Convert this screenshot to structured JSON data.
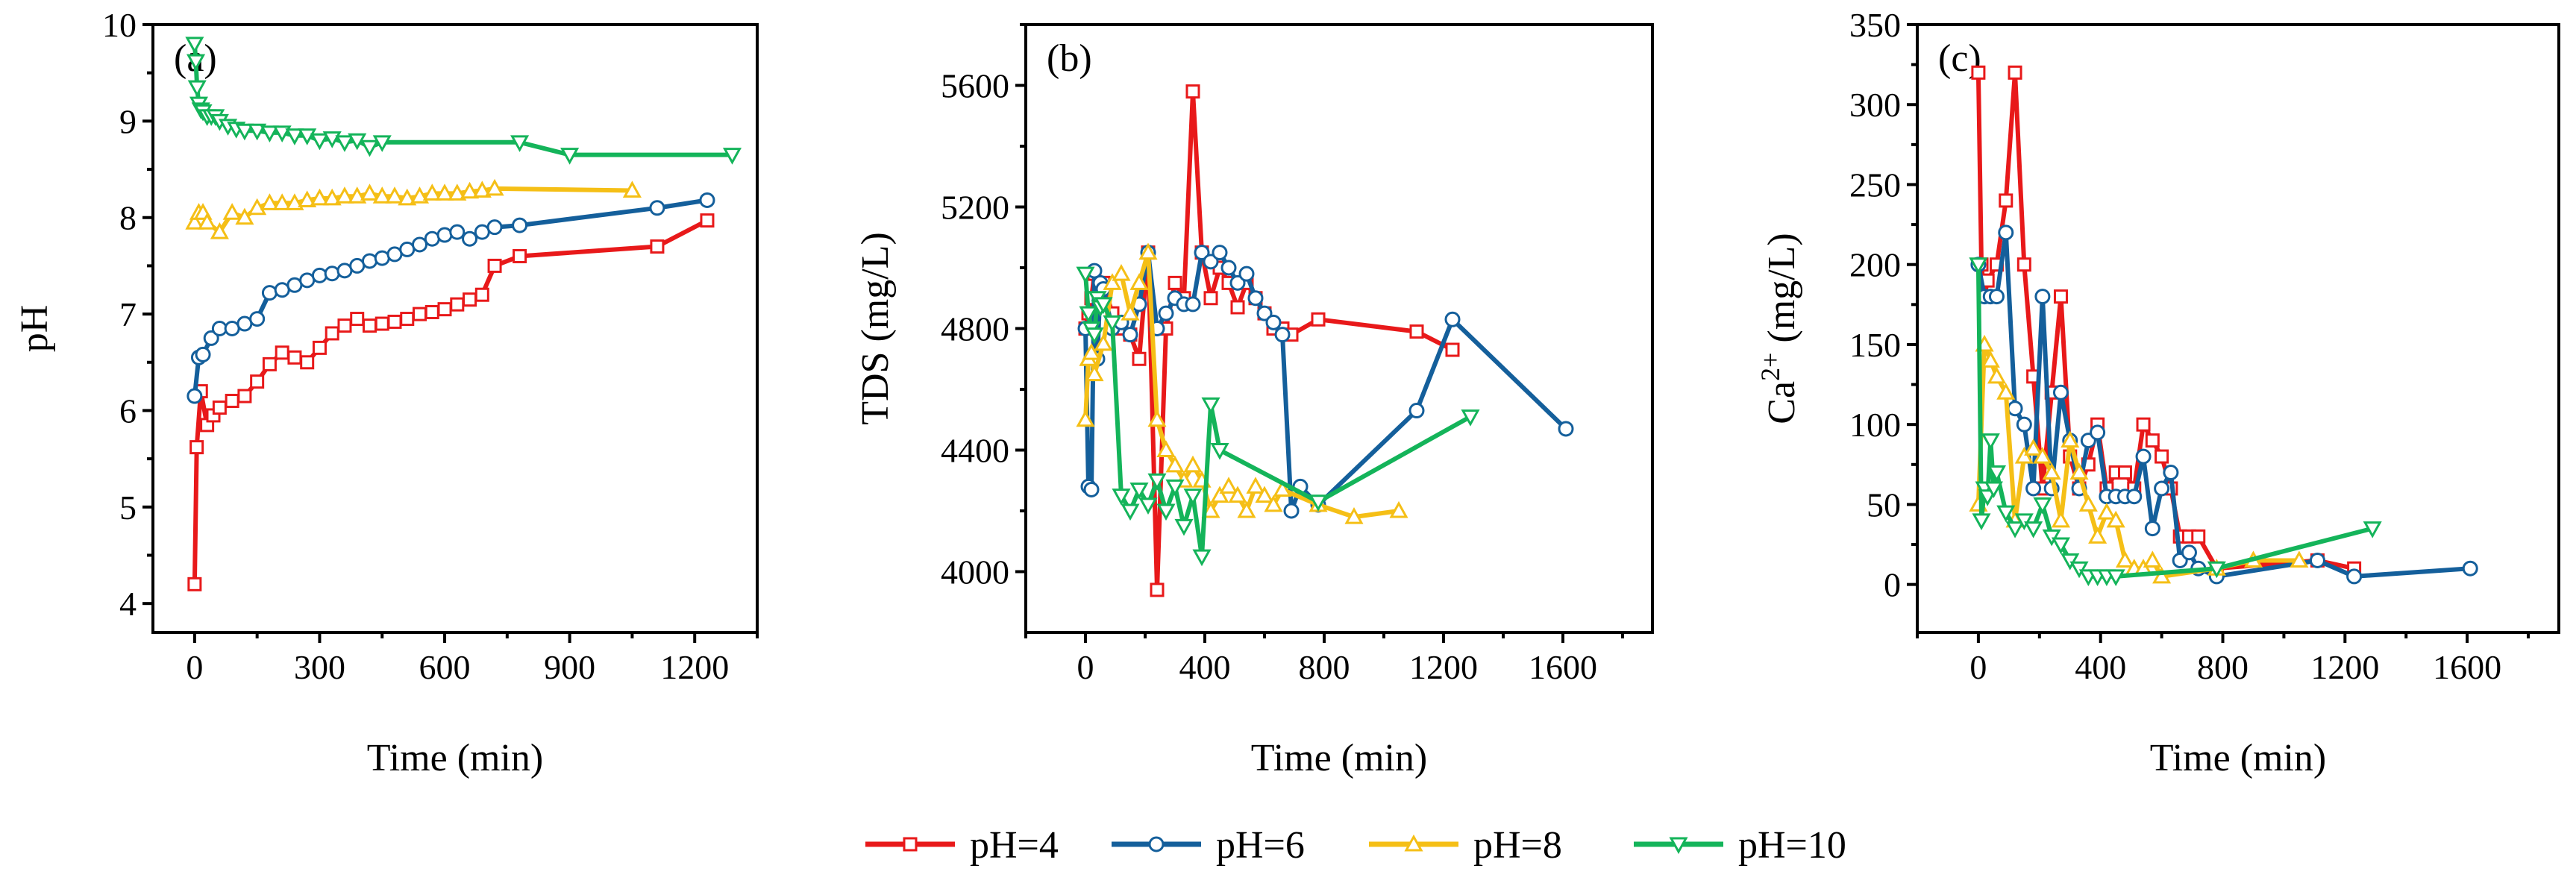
{
  "legend": [
    {
      "label": "pH=4",
      "color": "#e8191a",
      "marker": "square"
    },
    {
      "label": "pH=6",
      "color": "#145f9b",
      "marker": "circle"
    },
    {
      "label": "pH=8",
      "color": "#f5bf16",
      "marker": "triangle-up"
    },
    {
      "label": "pH=10",
      "color": "#14b45a",
      "marker": "triangle-down"
    }
  ],
  "chart_data": [
    {
      "type": "line",
      "panel": "(a)",
      "xlabel": "Time (min)",
      "ylabel": "pH",
      "xlim": [
        -100,
        1350
      ],
      "ylim": [
        3.7,
        10
      ],
      "xticks": [
        0,
        300,
        600,
        900,
        1200
      ],
      "yticks": [
        4,
        5,
        6,
        7,
        8,
        9,
        10
      ],
      "series": [
        {
          "name": "pH=4",
          "x": [
            0,
            5,
            15,
            30,
            45,
            60,
            90,
            120,
            150,
            180,
            210,
            240,
            270,
            300,
            330,
            360,
            390,
            420,
            450,
            480,
            510,
            540,
            570,
            600,
            630,
            660,
            690,
            720,
            780,
            1110,
            1230
          ],
          "y": [
            4.2,
            5.62,
            6.2,
            5.85,
            5.95,
            6.03,
            6.1,
            6.15,
            6.3,
            6.48,
            6.6,
            6.55,
            6.5,
            6.65,
            6.8,
            6.88,
            6.95,
            6.88,
            6.9,
            6.92,
            6.95,
            7.0,
            7.02,
            7.05,
            7.1,
            7.15,
            7.2,
            7.5,
            7.6,
            7.7,
            7.97
          ]
        },
        {
          "name": "pH=6",
          "x": [
            0,
            10,
            20,
            40,
            60,
            90,
            120,
            150,
            180,
            210,
            240,
            270,
            300,
            330,
            360,
            390,
            420,
            450,
            480,
            510,
            540,
            570,
            600,
            630,
            660,
            690,
            720,
            780,
            1110,
            1230
          ],
          "y": [
            6.15,
            6.55,
            6.58,
            6.75,
            6.85,
            6.85,
            6.9,
            6.95,
            7.22,
            7.25,
            7.3,
            7.35,
            7.4,
            7.42,
            7.45,
            7.5,
            7.55,
            7.58,
            7.62,
            7.67,
            7.72,
            7.78,
            7.82,
            7.85,
            7.78,
            7.85,
            7.9,
            7.92,
            8.1,
            8.18
          ]
        },
        {
          "name": "pH=8",
          "x": [
            0,
            10,
            20,
            30,
            60,
            90,
            120,
            150,
            180,
            210,
            240,
            270,
            300,
            330,
            360,
            390,
            420,
            450,
            480,
            510,
            540,
            570,
            600,
            630,
            660,
            690,
            720,
            1050
          ],
          "y": [
            7.95,
            8.05,
            8.05,
            7.95,
            7.85,
            8.05,
            8.0,
            8.1,
            8.15,
            8.15,
            8.15,
            8.18,
            8.2,
            8.2,
            8.22,
            8.22,
            8.25,
            8.22,
            8.22,
            8.2,
            8.22,
            8.25,
            8.25,
            8.25,
            8.27,
            8.28,
            8.3,
            8.28
          ]
        },
        {
          "name": "pH=10",
          "x": [
            0,
            3,
            6,
            10,
            15,
            20,
            30,
            40,
            50,
            60,
            80,
            100,
            120,
            150,
            180,
            210,
            240,
            270,
            300,
            330,
            360,
            390,
            420,
            450,
            780,
            900,
            1290
          ],
          "y": [
            9.8,
            9.62,
            9.35,
            9.18,
            9.12,
            9.1,
            9.05,
            9.05,
            9.05,
            9.0,
            8.95,
            8.92,
            8.9,
            8.9,
            8.88,
            8.88,
            8.85,
            8.85,
            8.8,
            8.82,
            8.78,
            8.8,
            8.73,
            8.78,
            8.78,
            8.65,
            8.65
          ]
        }
      ]
    },
    {
      "type": "line",
      "panel": "(b)",
      "xlabel": "Time (min)",
      "ylabel": "TDS (mg/L)",
      "xlim": [
        -200,
        1900
      ],
      "ylim": [
        3800,
        5800
      ],
      "xticks": [
        0,
        400,
        800,
        1200,
        1600
      ],
      "yticks": [
        4000,
        4400,
        4800,
        5200,
        5600
      ],
      "series": [
        {
          "name": "pH=4",
          "x": [
            0,
            10,
            20,
            30,
            60,
            90,
            120,
            150,
            180,
            210,
            240,
            270,
            300,
            330,
            360,
            390,
            420,
            450,
            480,
            510,
            540,
            570,
            600,
            630,
            660,
            690,
            780,
            1110,
            1230
          ],
          "y": [
            4800,
            4850,
            4900,
            4980,
            4950,
            4850,
            4800,
            4780,
            4700,
            5050,
            3940,
            4800,
            4950,
            4900,
            5580,
            5050,
            4900,
            5000,
            4950,
            4870,
            4950,
            4900,
            4850,
            4800,
            4800,
            4780,
            4830,
            4790,
            4730
          ]
        },
        {
          "name": "pH=6",
          "x": [
            0,
            10,
            20,
            30,
            40,
            50,
            60,
            90,
            120,
            150,
            180,
            210,
            240,
            270,
            300,
            330,
            360,
            390,
            420,
            450,
            480,
            510,
            540,
            570,
            600,
            630,
            660,
            690,
            720,
            780,
            1110,
            1230,
            1610
          ],
          "y": [
            4800,
            4280,
            4270,
            4990,
            4700,
            4950,
            4930,
            4800,
            4820,
            4780,
            4880,
            5050,
            4800,
            4850,
            4900,
            4880,
            4880,
            5050,
            5020,
            5050,
            5000,
            4950,
            4980,
            4900,
            4850,
            4820,
            4780,
            4200,
            4280,
            4220,
            4530,
            4830,
            4470
          ]
        },
        {
          "name": "pH=8",
          "x": [
            0,
            10,
            20,
            30,
            60,
            90,
            120,
            150,
            180,
            210,
            240,
            270,
            300,
            330,
            360,
            390,
            420,
            450,
            480,
            510,
            540,
            570,
            600,
            630,
            660,
            780,
            900,
            1050
          ],
          "y": [
            4500,
            4700,
            4720,
            4650,
            4750,
            4950,
            4980,
            4850,
            4950,
            5050,
            4500,
            4400,
            4350,
            4300,
            4350,
            4300,
            4200,
            4250,
            4280,
            4250,
            4200,
            4280,
            4250,
            4220,
            4270,
            4220,
            4180,
            4200
          ]
        },
        {
          "name": "pH=10",
          "x": [
            0,
            10,
            20,
            30,
            40,
            50,
            60,
            90,
            120,
            150,
            180,
            210,
            240,
            270,
            300,
            330,
            360,
            390,
            420,
            450,
            780,
            1290
          ],
          "y": [
            4980,
            4850,
            4800,
            4780,
            4900,
            4870,
            4880,
            4820,
            4250,
            4200,
            4270,
            4220,
            4300,
            4200,
            4280,
            4150,
            4250,
            4050,
            4550,
            4400,
            4230,
            4510
          ]
        }
      ]
    },
    {
      "type": "line",
      "panel": "(c)",
      "xlabel": "Time (min)",
      "ylabel": "Ca2+ (mg/L)",
      "xlim": [
        -200,
        1900
      ],
      "ylim": [
        -30,
        350
      ],
      "xticks": [
        0,
        400,
        800,
        1200,
        1600
      ],
      "yticks": [
        0,
        50,
        100,
        150,
        200,
        250,
        300,
        350
      ],
      "series": [
        {
          "name": "pH=4",
          "x": [
            0,
            10,
            20,
            30,
            60,
            90,
            120,
            150,
            180,
            210,
            240,
            270,
            300,
            330,
            360,
            390,
            420,
            450,
            480,
            510,
            540,
            570,
            600,
            630,
            660,
            690,
            720,
            780,
            1110,
            1230
          ],
          "y": [
            320,
            200,
            180,
            190,
            200,
            240,
            320,
            200,
            130,
            60,
            120,
            180,
            80,
            60,
            75,
            100,
            60,
            70,
            70,
            60,
            100,
            90,
            80,
            60,
            30,
            30,
            30,
            10,
            15,
            10
          ]
        },
        {
          "name": "pH=6",
          "x": [
            0,
            20,
            40,
            60,
            90,
            120,
            150,
            180,
            210,
            240,
            270,
            300,
            330,
            360,
            390,
            420,
            450,
            480,
            510,
            540,
            570,
            600,
            630,
            660,
            690,
            720,
            780,
            1110,
            1230,
            1610
          ],
          "y": [
            200,
            180,
            180,
            180,
            220,
            110,
            100,
            60,
            180,
            60,
            120,
            90,
            60,
            90,
            95,
            55,
            55,
            55,
            55,
            80,
            35,
            60,
            70,
            15,
            20,
            10,
            5,
            15,
            5,
            10
          ]
        },
        {
          "name": "pH=8",
          "x": [
            0,
            20,
            40,
            60,
            90,
            120,
            150,
            180,
            210,
            240,
            270,
            300,
            330,
            360,
            390,
            420,
            450,
            480,
            510,
            540,
            570,
            600,
            780,
            900,
            1050
          ],
          "y": [
            50,
            150,
            140,
            130,
            120,
            40,
            80,
            85,
            80,
            70,
            40,
            90,
            70,
            50,
            30,
            45,
            40,
            15,
            10,
            10,
            15,
            5,
            10,
            15,
            15
          ]
        },
        {
          "name": "pH=10",
          "x": [
            0,
            10,
            20,
            30,
            40,
            50,
            60,
            90,
            120,
            150,
            180,
            210,
            240,
            270,
            300,
            330,
            360,
            390,
            420,
            450,
            780,
            1290
          ],
          "y": [
            200,
            40,
            60,
            55,
            90,
            60,
            70,
            45,
            35,
            40,
            35,
            50,
            30,
            25,
            15,
            10,
            5,
            5,
            5,
            5,
            10,
            35
          ]
        }
      ]
    }
  ]
}
